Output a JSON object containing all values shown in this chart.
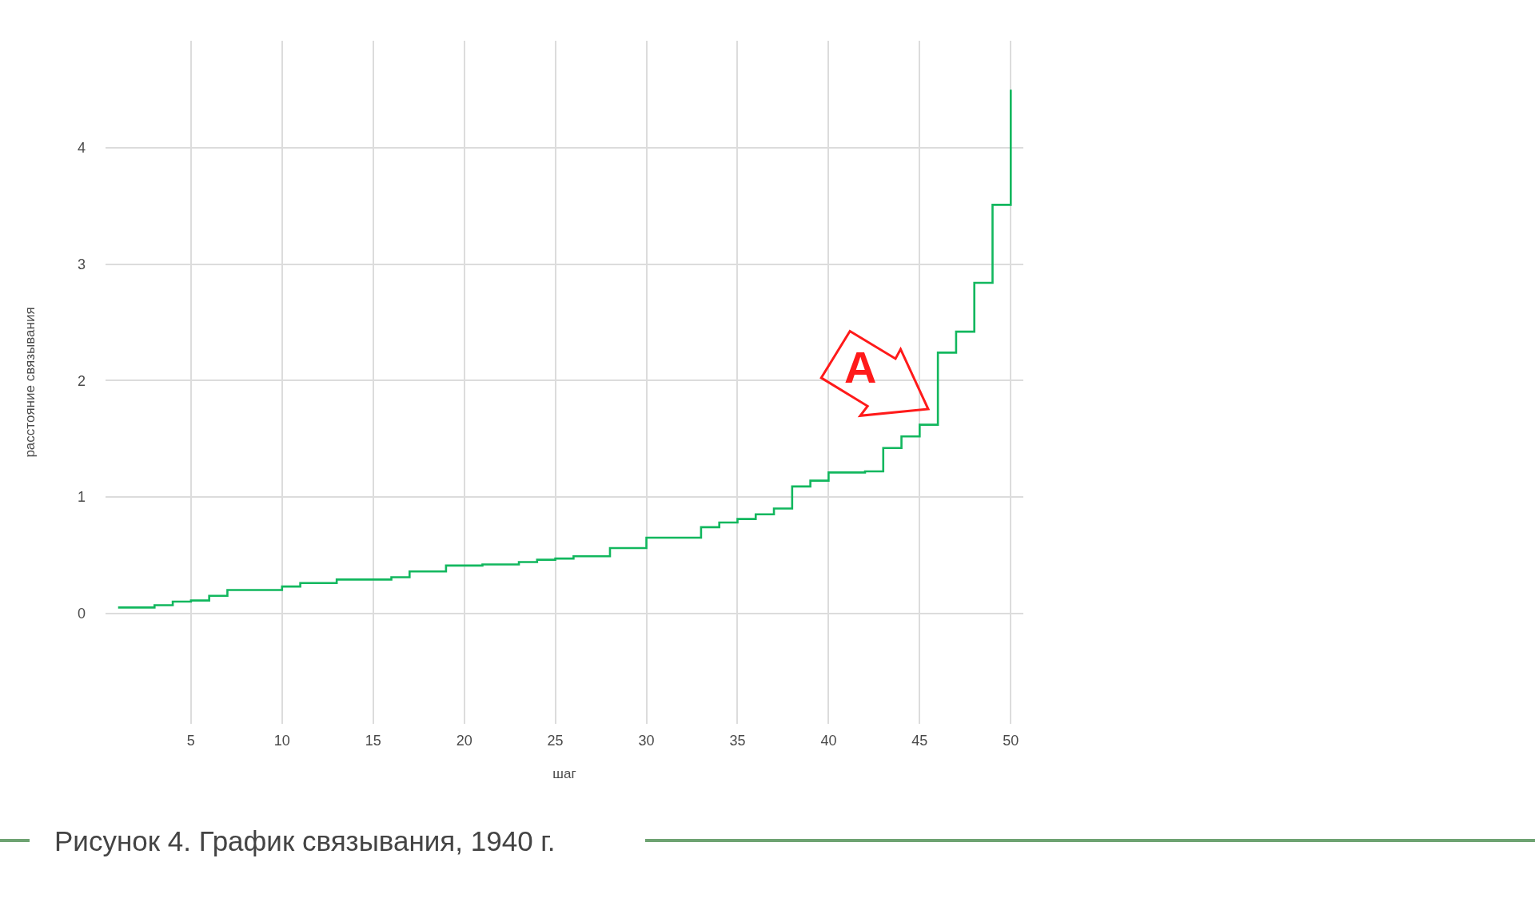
{
  "chart_data": {
    "type": "step",
    "color": "#12b75e",
    "x": [
      1,
      2,
      3,
      4,
      5,
      6,
      7,
      8,
      9,
      10,
      11,
      12,
      13,
      14,
      15,
      16,
      17,
      18,
      19,
      20,
      21,
      22,
      23,
      24,
      25,
      26,
      27,
      28,
      29,
      30,
      31,
      32,
      33,
      34,
      35,
      36,
      37,
      38,
      39,
      40,
      41,
      42,
      43,
      44,
      45,
      46,
      47,
      48,
      49,
      50
    ],
    "values": [
      0.05,
      0.05,
      0.07,
      0.1,
      0.11,
      0.15,
      0.2,
      0.2,
      0.2,
      0.23,
      0.26,
      0.26,
      0.29,
      0.29,
      0.29,
      0.31,
      0.36,
      0.36,
      0.41,
      0.41,
      0.42,
      0.42,
      0.44,
      0.46,
      0.47,
      0.49,
      0.49,
      0.56,
      0.56,
      0.65,
      0.65,
      0.65,
      0.74,
      0.78,
      0.81,
      0.85,
      0.9,
      1.09,
      1.14,
      1.21,
      1.21,
      1.22,
      1.42,
      1.52,
      1.62,
      2.24,
      2.42,
      2.84,
      3.51,
      4.5
    ],
    "xlabel": "шаг",
    "ylabel": "расстояние связывания",
    "xlim": [
      0.31,
      50.69
    ],
    "xticks": [
      5,
      10,
      15,
      20,
      25,
      30,
      35,
      40,
      45,
      50
    ],
    "ylim": [
      -0.95,
      4.92
    ],
    "yticks": [
      0,
      1,
      2,
      3,
      4
    ],
    "grid": true,
    "annotations": [
      "A",
      "Рисунок 4. График связывания, 1940 г."
    ]
  }
}
